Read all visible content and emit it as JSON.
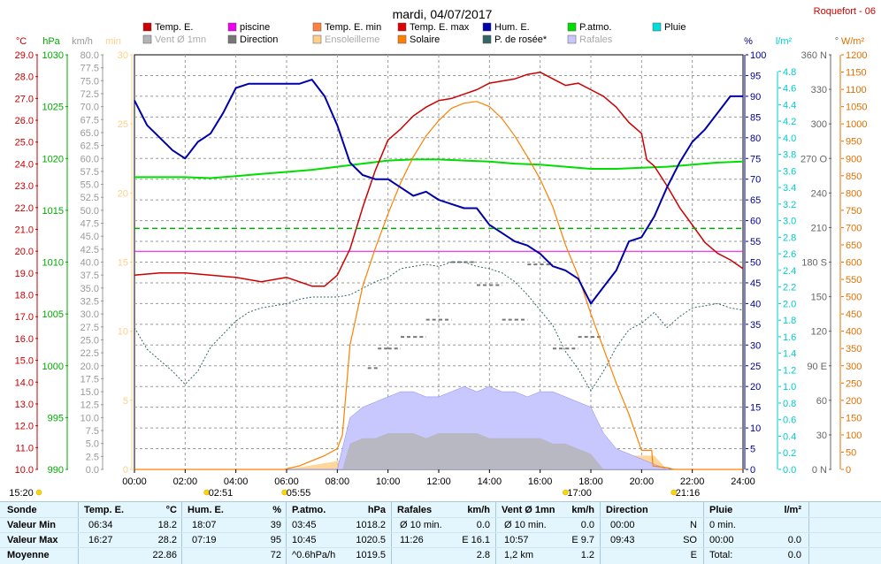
{
  "page": {
    "title": "mardi, 04/07/2017",
    "station": "Roquefort - 06"
  },
  "legend": [
    {
      "label": "Temp. E.",
      "color": "#cc0000"
    },
    {
      "label": "piscine",
      "color": "#ee00ee"
    },
    {
      "label": "Temp. E. min",
      "color": "#ff8040"
    },
    {
      "label": "Temp. E. max",
      "color": "#dd0000"
    },
    {
      "label": "Hum. E.",
      "color": "#0000aa"
    },
    {
      "label": "P.atmo.",
      "color": "#00dd00"
    },
    {
      "label": "Pluie",
      "color": "#00dddd"
    },
    {
      "label": "Vent Ø 1mn",
      "color": "#b4b4b4"
    },
    {
      "label": "Direction",
      "color": "#777777"
    },
    {
      "label": "Ensoleilleme",
      "color": "#ffd08a"
    },
    {
      "label": "Solaire",
      "color": "#ff8000"
    },
    {
      "label": "P. de rosée*",
      "color": "#336666"
    },
    {
      "label": "Rafales",
      "color": "#c8c8ff"
    }
  ],
  "axes": {
    "temp": {
      "unit": "°C",
      "color": "#cc0000",
      "ticks": [
        "29.0",
        "28.0",
        "27.0",
        "26.0",
        "25.0",
        "24.0",
        "23.0",
        "22.0",
        "21.0",
        "20.0",
        "19.0",
        "18.0",
        "17.0",
        "16.0",
        "15.0",
        "14.0",
        "13.0",
        "12.0",
        "11.0",
        "10.0"
      ]
    },
    "press": {
      "unit": "hPa",
      "color": "#00aa00",
      "ticks": [
        "1030",
        "1025",
        "1020",
        "1015",
        "1010",
        "1005",
        "1000",
        "995",
        "990"
      ]
    },
    "wind": {
      "unit": "km/h",
      "color": "#999999",
      "ticks": [
        "80.0",
        "77.5",
        "75.0",
        "72.5",
        "70.0",
        "67.5",
        "65.0",
        "62.5",
        "60.0",
        "57.5",
        "55.0",
        "52.5",
        "50.0",
        "47.5",
        "45.0",
        "42.5",
        "40.0",
        "37.5",
        "35.0",
        "32.5",
        "30.0",
        "27.5",
        "25.0",
        "22.5",
        "20.0",
        "17.5",
        "15.0",
        "12.5",
        "10.0",
        "7.5",
        "5.0",
        "2.5",
        "0.0"
      ]
    },
    "min": {
      "unit": "min",
      "color": "#ffd08a",
      "ticks": [
        "30",
        "25",
        "20",
        "15",
        "10",
        "5",
        "0"
      ]
    },
    "hum": {
      "unit": "%",
      "color": "#000088",
      "ticks": [
        "100",
        "95",
        "90",
        "85",
        "80",
        "75",
        "70",
        "65",
        "60",
        "55",
        "50",
        "45",
        "40",
        "35",
        "30",
        "25",
        "20",
        "15",
        "10",
        "5",
        "0"
      ]
    },
    "rain": {
      "unit": "l/m²",
      "color": "#00cccc",
      "ticks": [
        "4.8",
        "4.6",
        "4.4",
        "4.2",
        "4.0",
        "3.8",
        "3.6",
        "3.4",
        "3.2",
        "3.0",
        "2.8",
        "2.6",
        "2.4",
        "2.2",
        "2.0",
        "1.8",
        "1.6",
        "1.4",
        "1.2",
        "1.0",
        "0.8",
        "0.6",
        "0.4",
        "0.2",
        "0.0"
      ]
    },
    "dir": {
      "unit": "°",
      "color": "#666666",
      "ticks": [
        "360 N",
        "330",
        "300",
        "270 O",
        "240",
        "210",
        "180 S",
        "150",
        "120",
        "90 E",
        "60",
        "30",
        "0 N"
      ]
    },
    "solar": {
      "unit": "W/m²",
      "color": "#e07000",
      "ticks": [
        "1200",
        "1150",
        "1100",
        "1050",
        "1000",
        "950",
        "900",
        "850",
        "800",
        "750",
        "700",
        "650",
        "600",
        "550",
        "500",
        "450",
        "400",
        "350",
        "300",
        "250",
        "200",
        "150",
        "100",
        "50",
        "0"
      ]
    }
  },
  "time_labels": [
    "00:00",
    "02:00",
    "04:00",
    "06:00",
    "08:00",
    "10:00",
    "12:00",
    "14:00",
    "16:00",
    "18:00",
    "20:00",
    "22:00",
    "24:00"
  ],
  "events": [
    {
      "label": "15:20",
      "hour": 0.0,
      "row": 1
    },
    {
      "label": "02:51",
      "hour": 2.85,
      "row": 1
    },
    {
      "label": "05:55",
      "hour": 5.92,
      "row": 1
    },
    {
      "label": "17:00",
      "hour": 17.0,
      "row": 1
    },
    {
      "label": "21:16",
      "hour": 21.27,
      "row": 1
    }
  ],
  "chart_data": {
    "type": "line",
    "x_unit": "hour",
    "xlim": [
      0,
      24
    ],
    "series": [
      {
        "name": "Temp. E.",
        "axis": "temp",
        "ylim": [
          10,
          29
        ],
        "color": "#cc0000",
        "x": [
          0,
          1,
          2,
          3,
          4,
          5,
          6,
          6.5,
          7,
          7.5,
          8,
          8.5,
          9,
          9.5,
          10,
          10.5,
          11,
          11.5,
          12,
          12.5,
          13,
          13.5,
          14,
          14.5,
          15,
          15.5,
          16,
          16.5,
          17,
          17.5,
          18,
          18.5,
          19,
          19.5,
          20,
          20.2,
          20.5,
          21,
          21.5,
          22,
          22.5,
          23,
          23.5,
          24
        ],
        "y": [
          18.9,
          19.0,
          19.0,
          18.9,
          18.8,
          18.6,
          18.8,
          18.6,
          18.4,
          18.4,
          18.9,
          20.1,
          22.0,
          23.7,
          25.1,
          25.6,
          26.2,
          26.6,
          26.9,
          27.0,
          27.2,
          27.4,
          27.7,
          27.8,
          27.9,
          28.1,
          28.2,
          27.9,
          27.6,
          27.7,
          27.4,
          27.1,
          26.6,
          25.9,
          25.4,
          24.2,
          23.9,
          23.0,
          22.0,
          21.2,
          20.4,
          19.9,
          19.6,
          19.2
        ]
      },
      {
        "name": "piscine",
        "axis": "temp",
        "ylim": [
          10,
          29
        ],
        "color": "#ee00ee",
        "x": [
          0,
          24
        ],
        "y": [
          20.0,
          20.0
        ]
      },
      {
        "name": "Hum. E.",
        "axis": "hum",
        "ylim": [
          0,
          100
        ],
        "color": "#0000aa",
        "x": [
          0,
          0.5,
          1,
          1.5,
          2,
          2.5,
          3,
          3.5,
          4,
          4.5,
          5,
          5.5,
          6,
          6.5,
          7,
          7.5,
          8,
          8.5,
          9,
          9.5,
          10,
          10.5,
          11,
          11.5,
          12,
          12.5,
          13,
          13.5,
          14,
          14.5,
          15,
          15.5,
          16,
          16.5,
          17,
          17.5,
          18,
          18.5,
          19,
          19.5,
          20,
          20.5,
          21,
          21.5,
          22,
          22.5,
          23,
          23.5,
          24
        ],
        "y": [
          89,
          83,
          80,
          77,
          75,
          79,
          81,
          86,
          92,
          93,
          93,
          93,
          93,
          93,
          94,
          90,
          83,
          74,
          71,
          70,
          70,
          68,
          66,
          67,
          65,
          64,
          63,
          63,
          59,
          57,
          55,
          54,
          52,
          49,
          48,
          46,
          40,
          44,
          48,
          55,
          56,
          61,
          68,
          74,
          79,
          82,
          86,
          90,
          90
        ]
      },
      {
        "name": "P.atmo.",
        "axis": "press",
        "ylim": [
          990,
          1030
        ],
        "color": "#00dd00",
        "x": [
          0,
          1,
          2,
          3,
          4,
          5,
          6,
          7,
          8,
          9,
          10,
          11,
          12,
          13,
          14,
          15,
          16,
          17,
          18,
          19,
          20,
          21,
          22,
          23,
          24
        ],
        "y": [
          1018.2,
          1018.2,
          1018.2,
          1018.1,
          1018.3,
          1018.5,
          1018.7,
          1018.9,
          1019.2,
          1019.5,
          1019.8,
          1019.9,
          1019.9,
          1019.8,
          1019.7,
          1019.5,
          1019.4,
          1019.2,
          1019.0,
          1019.0,
          1019.1,
          1019.2,
          1019.4,
          1019.6,
          1019.7
        ]
      },
      {
        "name": "P. de rosée*",
        "axis": "temp",
        "ylim": [
          10,
          29
        ],
        "color": "#336666",
        "x": [
          0,
          0.5,
          1,
          1.5,
          2,
          2.5,
          3,
          3.5,
          4,
          4.5,
          5,
          5.5,
          6,
          6.5,
          7,
          7.5,
          8,
          8.5,
          9,
          9.5,
          10,
          10.5,
          11,
          11.5,
          12,
          12.5,
          13,
          13.5,
          14,
          14.5,
          15,
          15.5,
          16,
          16.5,
          17,
          17.5,
          18,
          18.5,
          19,
          19.5,
          20,
          20.5,
          21,
          21.5,
          22,
          22.5,
          23,
          23.5,
          24
        ],
        "y": [
          16.5,
          15.5,
          15.0,
          14.5,
          13.9,
          14.5,
          15.6,
          16.2,
          16.8,
          17.2,
          17.4,
          17.5,
          17.6,
          17.8,
          17.9,
          17.9,
          17.9,
          18.0,
          18.3,
          18.6,
          18.8,
          19.2,
          19.3,
          19.4,
          19.3,
          19.5,
          19.5,
          19.3,
          19.2,
          19.0,
          18.6,
          18.0,
          17.3,
          16.6,
          15.4,
          14.6,
          13.6,
          14.5,
          15.6,
          16.4,
          16.7,
          17.2,
          16.5,
          17.0,
          17.4,
          17.5,
          17.6,
          17.4,
          17.3
        ]
      },
      {
        "name": "Solaire",
        "axis": "solar",
        "ylim": [
          0,
          1200
        ],
        "color": "#ff8000",
        "x": [
          0,
          5.9,
          6.5,
          7,
          7.5,
          8,
          8.2,
          8.5,
          9,
          9.5,
          10,
          10.5,
          11,
          11.5,
          12,
          12.5,
          13,
          13.5,
          14,
          14.5,
          15,
          15.5,
          16,
          16.5,
          17,
          17.5,
          18,
          18.5,
          19,
          19.5,
          20,
          20.4,
          20.45,
          21,
          21.27,
          24
        ],
        "y": [
          0,
          0,
          10,
          25,
          40,
          60,
          100,
          360,
          530,
          640,
          740,
          830,
          905,
          965,
          1010,
          1045,
          1060,
          1065,
          1050,
          1015,
          965,
          905,
          840,
          760,
          650,
          560,
          450,
          350,
          250,
          160,
          55,
          55,
          10,
          5,
          0,
          0
        ]
      },
      {
        "name": "Rafales",
        "axis": "wind",
        "ylim": [
          0,
          80
        ],
        "color": "#c8c8ff",
        "x": [
          0,
          8.0,
          8.5,
          9,
          9.5,
          10,
          10.5,
          11,
          11.5,
          12,
          12.5,
          13,
          13.5,
          14,
          14.5,
          15,
          15.5,
          16,
          16.5,
          17,
          17.5,
          18,
          18.5,
          19,
          19.5,
          20,
          20.5,
          21,
          24
        ],
        "y": [
          0,
          0,
          10,
          12,
          13,
          14,
          15,
          15,
          14,
          14,
          15,
          16,
          15,
          16,
          15,
          15,
          14,
          15,
          15,
          14,
          13,
          12,
          7,
          4,
          3,
          2,
          1,
          0,
          0
        ]
      },
      {
        "name": "Vent Ø 1mn",
        "axis": "wind",
        "ylim": [
          0,
          80
        ],
        "color": "#b4b4b4",
        "x": [
          0,
          8.2,
          8.5,
          9,
          9.5,
          10,
          10.5,
          11,
          11.5,
          12,
          12.5,
          13,
          13.5,
          14,
          14.5,
          15,
          15.5,
          16,
          16.5,
          17,
          17.5,
          18,
          18.5,
          24
        ],
        "y": [
          0,
          0,
          5,
          6,
          6,
          7,
          7,
          7,
          6,
          7,
          7,
          7,
          7,
          6,
          6,
          6,
          6,
          6,
          5,
          5,
          4,
          3,
          0,
          0
        ]
      },
      {
        "name": "Ensoleilleme",
        "axis": "min",
        "ylim": [
          0,
          30
        ],
        "color": "#ffd08a",
        "x": [
          0,
          6,
          7,
          8,
          8.2,
          8.5,
          20.5,
          21,
          24
        ],
        "y": [
          0,
          0,
          0.3,
          0.6,
          0.8,
          1,
          1,
          0,
          0
        ]
      },
      {
        "name": "Direction",
        "axis": "dir",
        "ylim": [
          0,
          360
        ],
        "color": "#777777",
        "x": [
          9.2,
          9.6,
          10.0,
          10.5,
          11.0,
          11.5,
          12.0,
          12.5,
          13.0,
          13.5,
          14.0,
          14.5,
          15.0,
          15.5,
          16.0,
          16.5,
          17.0,
          17.5,
          18.0,
          18.5
        ],
        "y": [
          88,
          105,
          105,
          115,
          115,
          130,
          130,
          180,
          180,
          160,
          160,
          130,
          130,
          178,
          178,
          105,
          105,
          115,
          115,
          115
        ]
      }
    ],
    "stats_summary": {
      "temp": {
        "min": 18.2,
        "min_time": "06:34",
        "max": 28.2,
        "max_time": "16:27",
        "avg": 22.86
      },
      "hum": {
        "min": 39,
        "min_time": "18:07",
        "max": 95,
        "max_time": "07:19",
        "avg": 72
      },
      "press": {
        "min": 1018.2,
        "min_time": "03:45",
        "max": 1020.5,
        "max_time": "10:45",
        "avg": 1019.5
      }
    }
  },
  "stats": {
    "headers": {
      "sonde": "Sonde",
      "temp": "Temp. E.",
      "temp_unit": "°C",
      "hum": "Hum. E.",
      "hum_unit": "%",
      "press": "P.atmo.",
      "press_unit": "hPa",
      "raf": "Rafales",
      "raf_unit": "km/h",
      "vent": "Vent Ø 1mn",
      "vent_unit": "km/h",
      "dir": "Direction",
      "pluie": "Pluie",
      "pluie_unit": "l/m²"
    },
    "rows": [
      {
        "label": "Valeur Min",
        "temp_t": "06:34",
        "temp_v": "18.2",
        "hum_t": "18:07",
        "hum_v": "39",
        "press_t": "03:45",
        "press_v": "1018.2",
        "raf_t": "Ø 10 min.",
        "raf_v": "0.0",
        "vent_t": "Ø 10 min.",
        "vent_v": "0.0",
        "dir_t": "00:00",
        "dir_v": "N",
        "pluie_t": "0 min.",
        "pluie_v": ""
      },
      {
        "label": "Valeur Max",
        "temp_t": "16:27",
        "temp_v": "28.2",
        "hum_t": "07:19",
        "hum_v": "95",
        "press_t": "10:45",
        "press_v": "1020.5",
        "raf_t": "11:26",
        "raf_v": "E 16.1",
        "vent_t": "10:57",
        "vent_v": "E 9.7",
        "dir_t": "09:43",
        "dir_v": "SO",
        "pluie_t": "00:00",
        "pluie_v": "0.0"
      },
      {
        "label": "Moyenne",
        "temp_t": "",
        "temp_v": "22.86",
        "hum_t": "",
        "hum_v": "72",
        "press_t": "^0.6hPa/h",
        "press_v": "1019.5",
        "raf_t": "",
        "raf_v": "2.8",
        "vent_t": "1,2 km",
        "vent_v": "1.2",
        "dir_t": "",
        "dir_v": "E",
        "pluie_t": "Total:",
        "pluie_v": "0.0"
      }
    ]
  }
}
